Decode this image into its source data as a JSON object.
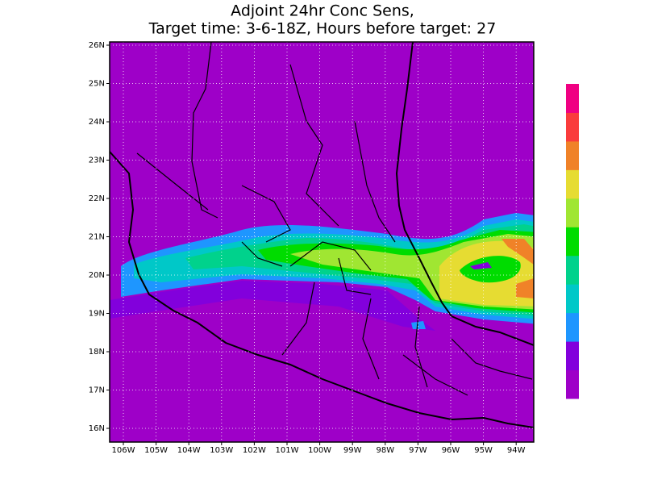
{
  "title": [
    "Adjoint 24hr Conc Sens,",
    "Target time: 3-6-18Z, Hours before target: 27"
  ],
  "lat_labels": [
    "26N",
    "25N",
    "24N",
    "23N",
    "22N",
    "21N",
    "20N",
    "19N",
    "18N",
    "17N",
    "16N"
  ],
  "lon_labels": [
    "106W",
    "105W",
    "104W",
    "103W",
    "102W",
    "101W",
    "100W",
    "99W",
    "98W",
    "97W",
    "96W",
    "95W",
    "94W"
  ],
  "colorbar": {
    "colors": [
      "#9e00c8",
      "#8200dc",
      "#1e96ff",
      "#00c8c8",
      "#00d28c",
      "#00dc00",
      "#a0e632",
      "#e6dc32",
      "#f08228",
      "#fa3c3c",
      "#f00082"
    ]
  }
}
